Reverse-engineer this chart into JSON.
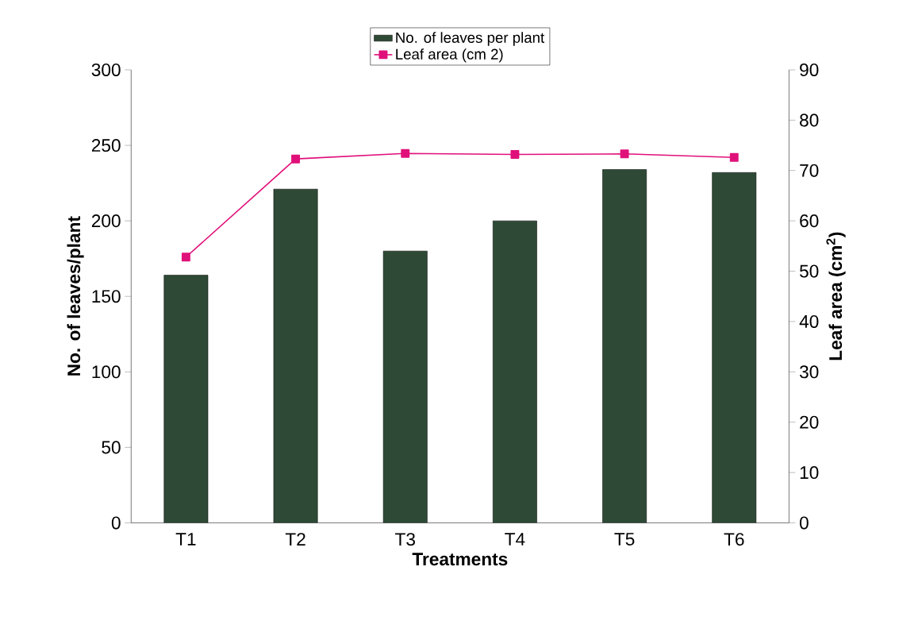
{
  "chart_data": {
    "type": "bar",
    "xlabel": "Treatments",
    "ylabel": "No. of leaves/plant",
    "y2label": "Leaf area (cm$^{2}$)",
    "categories": [
      "T1",
      "T2",
      "T3",
      "T4",
      "T5",
      "T6"
    ],
    "series": [
      {
        "name": "No. of leaves per plant",
        "color": "#2e4a36",
        "values": [
          164,
          221,
          180,
          200,
          234,
          232
        ]
      },
      {
        "name": "Leaf area (cm 2)",
        "type": "line",
        "axis": "y2",
        "color": "#e0107a",
        "values": [
          52.8,
          72.3,
          73.4,
          73.2,
          73.3,
          72.6
        ]
      }
    ],
    "ylim": [
      0,
      300
    ],
    "yticks": [
      0,
      50,
      100,
      150,
      200,
      250,
      300
    ],
    "y2lim": [
      0,
      90
    ],
    "y2ticks": [
      0,
      10,
      20,
      30,
      40,
      50,
      60,
      70,
      80,
      90
    ],
    "legend": "top",
    "grid": false,
    "marker": "square",
    "line_style": "solid"
  }
}
